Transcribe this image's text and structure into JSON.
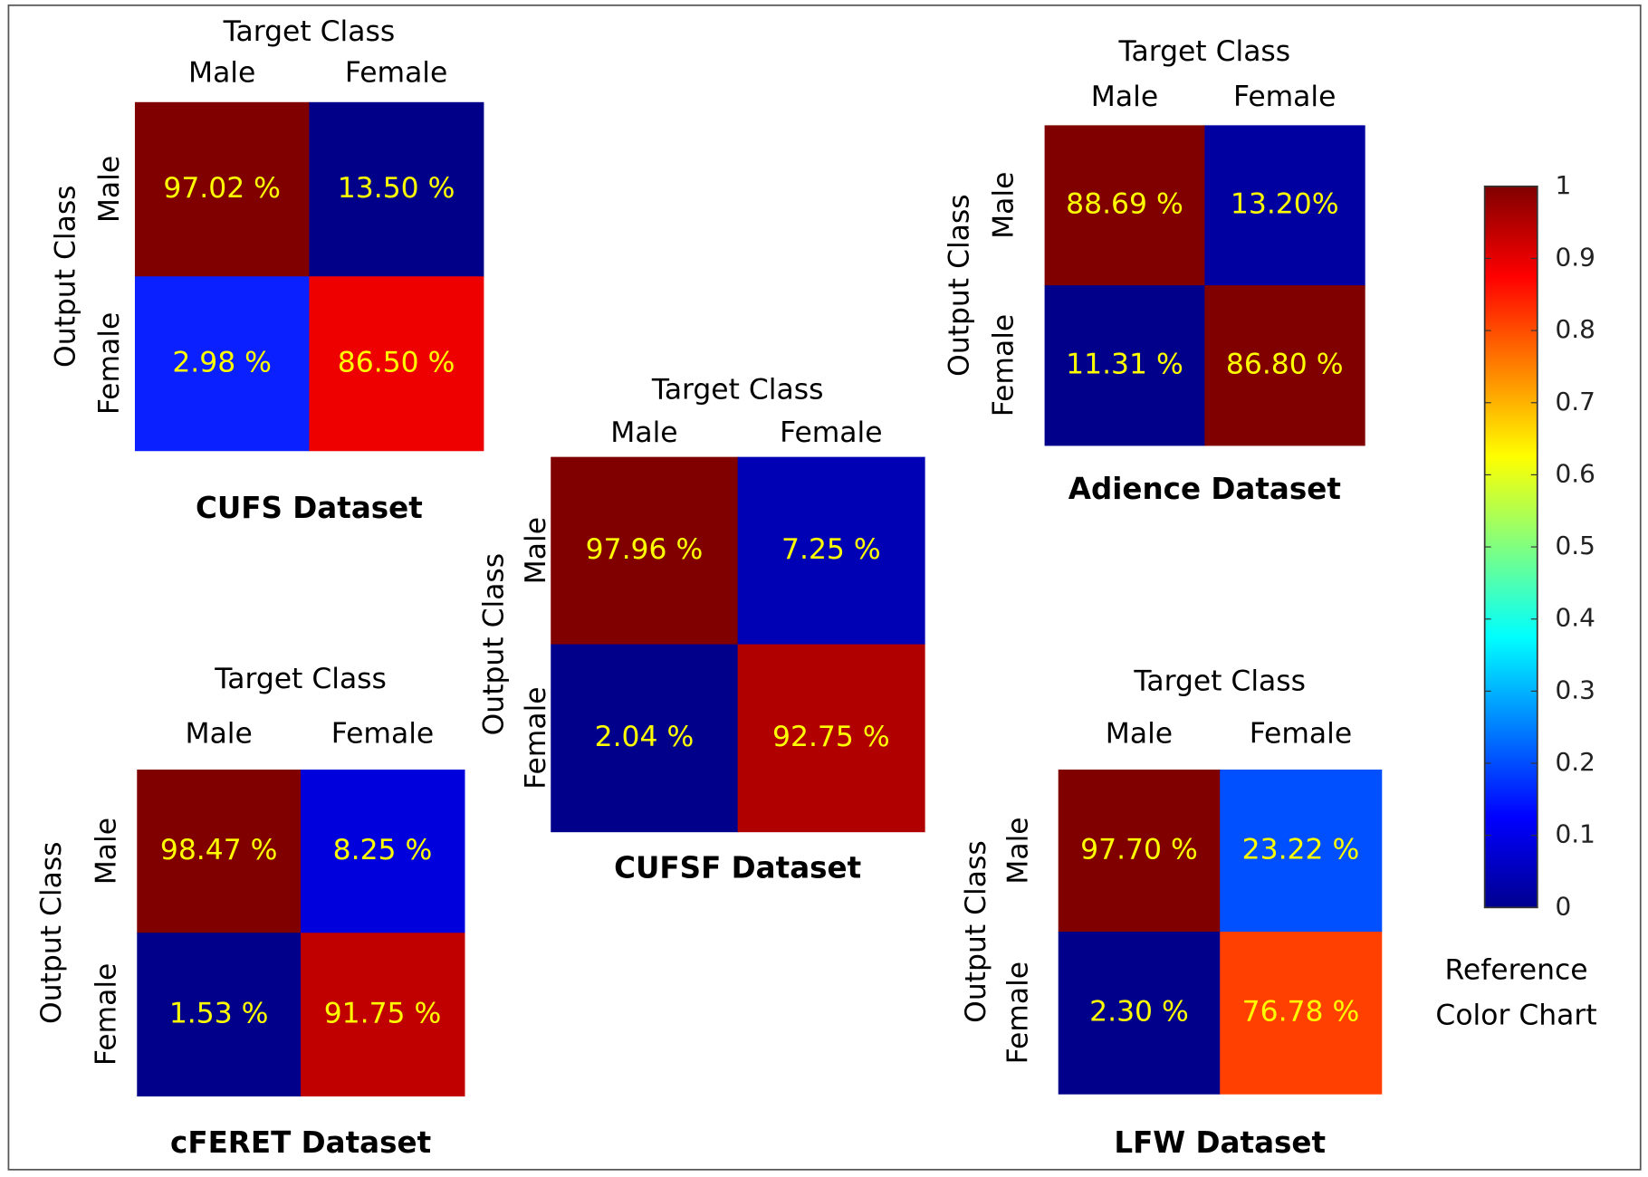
{
  "chart_data": [
    {
      "type": "heatmap",
      "title": "CUFS Dataset",
      "x_label": "Target Class",
      "y_label": "Output Class",
      "x_categories": [
        "Male",
        "Female"
      ],
      "y_categories": [
        "Male",
        "Female"
      ],
      "values": [
        [
          97.02,
          13.5
        ],
        [
          2.98,
          86.5
        ]
      ],
      "value_labels": [
        [
          "97.02 %",
          "13.50 %"
        ],
        [
          "2.98 %",
          "86.50 %"
        ]
      ],
      "colors": [
        [
          "#800000",
          "#000088"
        ],
        [
          "#0a20ff",
          "#ee0000"
        ]
      ]
    },
    {
      "type": "heatmap",
      "title": "Adience Dataset",
      "x_label": "Target Class",
      "y_label": "Output Class",
      "x_categories": [
        "Male",
        "Female"
      ],
      "y_categories": [
        "Male",
        "Female"
      ],
      "values": [
        [
          88.69,
          13.2
        ],
        [
          11.31,
          86.8
        ]
      ],
      "value_labels": [
        [
          "88.69 %",
          "13.20%"
        ],
        [
          "11.31 %",
          "86.80 %"
        ]
      ],
      "colors": [
        [
          "#800000",
          "#0000a0"
        ],
        [
          "#00008b",
          "#800000"
        ]
      ]
    },
    {
      "type": "heatmap",
      "title": "CUFSF Dataset",
      "x_label": "Target Class",
      "y_label": "Output Class",
      "x_categories": [
        "Male",
        "Female"
      ],
      "y_categories": [
        "Male",
        "Female"
      ],
      "values": [
        [
          97.96,
          7.25
        ],
        [
          2.04,
          92.75
        ]
      ],
      "value_labels": [
        [
          "97.96 %",
          "7.25 %"
        ],
        [
          "2.04 %",
          "92.75 %"
        ]
      ],
      "colors": [
        [
          "#800000",
          "#0000b4"
        ],
        [
          "#00008b",
          "#b00000"
        ]
      ]
    },
    {
      "type": "heatmap",
      "title": "cFERET Dataset",
      "x_label": "Target Class",
      "y_label": "Output Class",
      "x_categories": [
        "Male",
        "Female"
      ],
      "y_categories": [
        "Male",
        "Female"
      ],
      "values": [
        [
          98.47,
          8.25
        ],
        [
          1.53,
          91.75
        ]
      ],
      "value_labels": [
        [
          "98.47 %",
          "8.25 %"
        ],
        [
          "1.53 %",
          "91.75 %"
        ]
      ],
      "colors": [
        [
          "#800000",
          "#0000dc"
        ],
        [
          "#00008b",
          "#c00000"
        ]
      ]
    },
    {
      "type": "heatmap",
      "title": "LFW Dataset",
      "x_label": "Target Class",
      "y_label": "Output Class",
      "x_categories": [
        "Male",
        "Female"
      ],
      "y_categories": [
        "Male",
        "Female"
      ],
      "values": [
        [
          97.7,
          23.22
        ],
        [
          2.3,
          76.78
        ]
      ],
      "value_labels": [
        [
          "97.70 %",
          "23.22 %"
        ],
        [
          "2.30 %",
          "76.78 %"
        ]
      ],
      "colors": [
        [
          "#800000",
          "#0050ff"
        ],
        [
          "#00008b",
          "#ff4000"
        ]
      ]
    },
    {
      "type": "colorbar",
      "label": "Reference Color Chart",
      "ylim": [
        0,
        1
      ],
      "yticks": [
        0,
        0.1,
        0.2,
        0.3,
        0.4,
        0.5,
        0.6,
        0.7,
        0.8,
        0.9,
        1
      ],
      "colors": [
        "#00008f",
        "#0000ff",
        "#0080ff",
        "#00ffff",
        "#80ff80",
        "#ffff00",
        "#ff8000",
        "#ff0000",
        "#800000"
      ]
    }
  ]
}
